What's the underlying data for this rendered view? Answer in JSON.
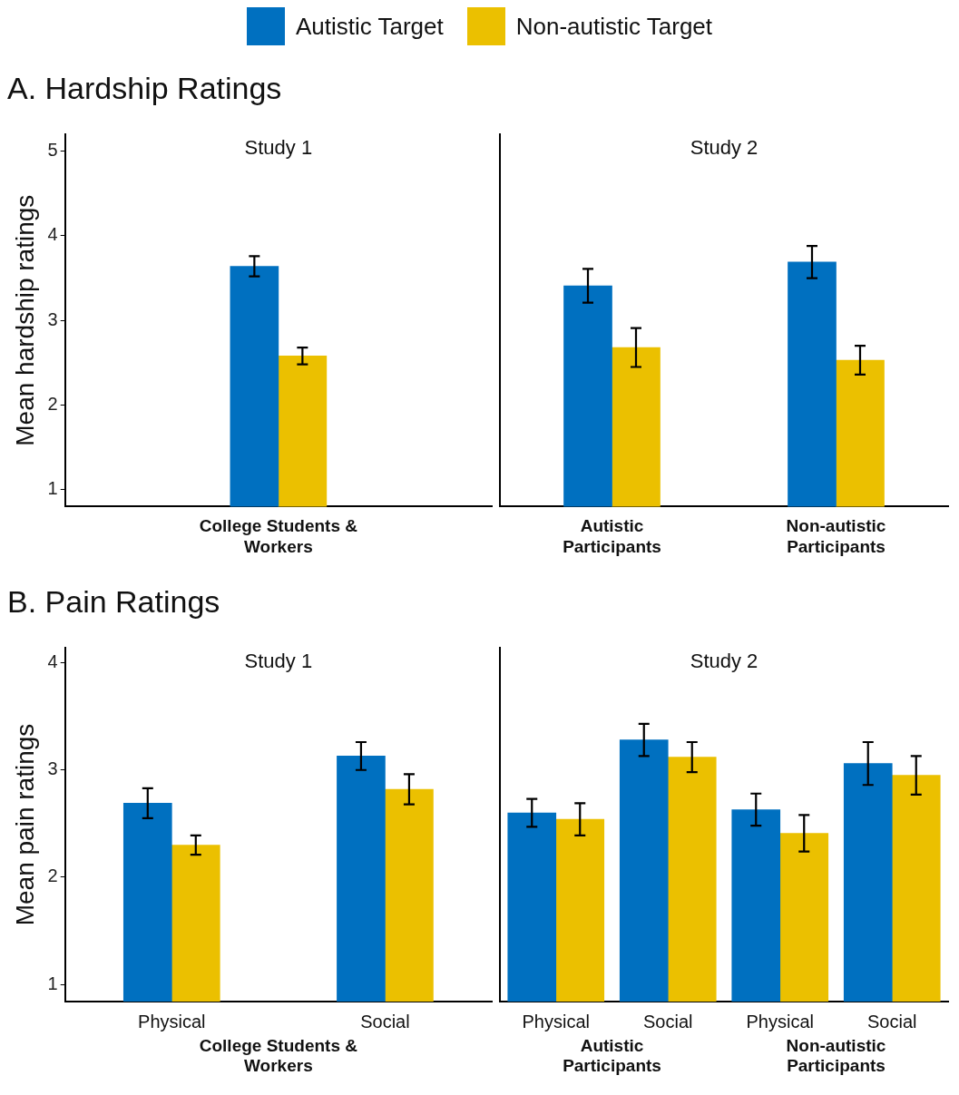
{
  "chart_data": [
    {
      "type": "bar",
      "title": "A. Hardship Ratings",
      "subtitle": "Study 1",
      "ylabel": "Mean hardship ratings",
      "legend": "top",
      "categories": [
        "College Students & Workers"
      ],
      "ylim": [
        0.8,
        5.2
      ],
      "yticks": [
        1,
        2,
        3,
        4,
        5
      ],
      "series": [
        {
          "name": "Autistic Target",
          "color": "#0070c0",
          "values": [
            3.64
          ],
          "errors": [
            0.12
          ]
        },
        {
          "name": "Non-autistic Target",
          "color": "#ebc000",
          "values": [
            2.58
          ],
          "errors": [
            0.1
          ]
        }
      ]
    },
    {
      "type": "bar",
      "subtitle": "Study 2",
      "categories": [
        "Autistic Participants",
        "Non-autistic Participants"
      ],
      "ylim": [
        0.8,
        5.2
      ],
      "yticks": [
        1,
        2,
        3,
        4,
        5
      ],
      "tick_labels": "x",
      "series": [
        {
          "color": "#0070c0",
          "values": [
            3.41,
            3.69
          ],
          "errors": [
            0.2,
            0.19
          ]
        },
        {
          "color": "#ebc000",
          "values": [
            2.68,
            2.53
          ],
          "errors": [
            0.23,
            0.17
          ]
        }
      ]
    },
    {
      "type": "bar",
      "title": "B. Pain Ratings",
      "subtitle": "Study 1",
      "ylabel": "Mean pain ratings",
      "categories": [
        "Physical",
        "Social"
      ],
      "annotations": [
        "College Students & Workers"
      ],
      "ylim": [
        0.84,
        4.14
      ],
      "yticks": [
        1,
        2,
        3,
        4
      ],
      "series": [
        {
          "color": "#0070c0",
          "values": [
            2.69,
            3.13
          ],
          "errors": [
            0.14,
            0.13
          ]
        },
        {
          "color": "#ebc000",
          "values": [
            2.3,
            2.82
          ],
          "errors": [
            0.09,
            0.14
          ]
        }
      ]
    },
    {
      "type": "bar",
      "subtitle": "Study 2",
      "categories": [
        "Physical",
        "Social",
        "Physical",
        "Social"
      ],
      "annotations": [
        "Autistic Participants",
        "Non-autistic Participants"
      ],
      "ylim": [
        0.84,
        4.14
      ],
      "yticks": [
        1,
        2,
        3,
        4
      ],
      "tick_labels": "x",
      "series": [
        {
          "color": "#0070c0",
          "values": [
            2.6,
            3.28,
            2.63,
            3.06
          ],
          "errors": [
            0.13,
            0.15,
            0.15,
            0.2
          ]
        },
        {
          "color": "#ebc000",
          "values": [
            2.54,
            3.12,
            2.41,
            2.95
          ],
          "errors": [
            0.15,
            0.14,
            0.17,
            0.18
          ]
        }
      ]
    }
  ]
}
